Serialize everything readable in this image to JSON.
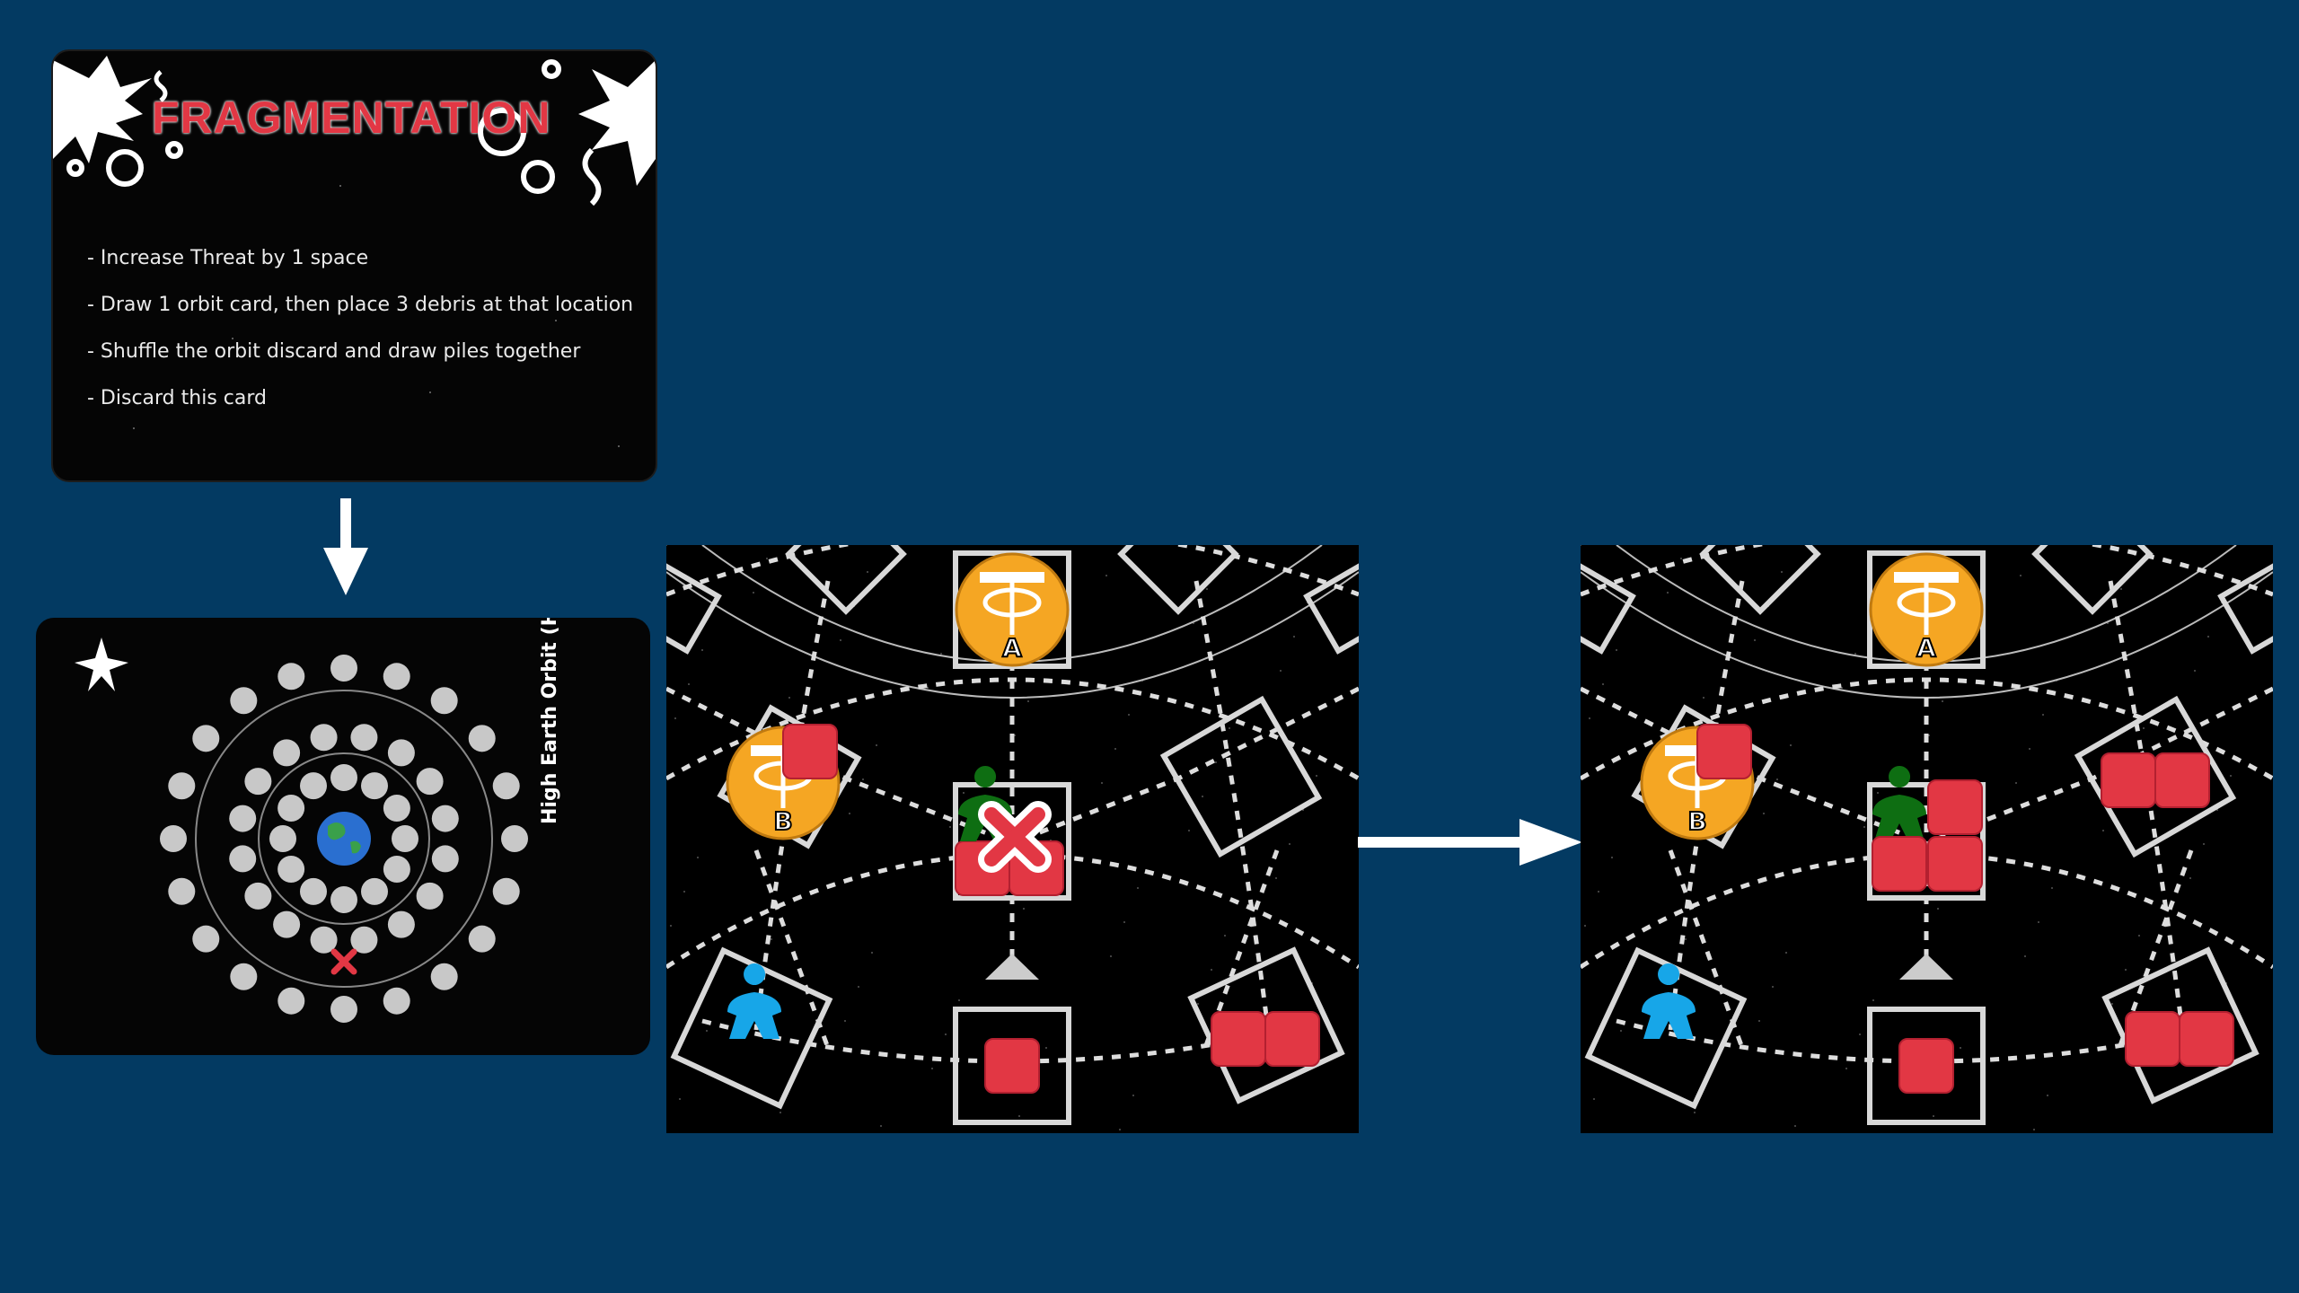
{
  "event_card": {
    "title": "FRAGMENTATION",
    "rules": [
      "- Increase Threat by 1 space",
      "- Draw 1 orbit card, then place 3 debris at that location",
      "- Shuffle the orbit discard and draw piles together",
      "- Discard this card"
    ]
  },
  "orbit_card": {
    "label": "High Earth Orbit (HEO)",
    "marker_icon": "x-mark-icon",
    "star_icon": "star-icon",
    "planet_icon": "earth-icon"
  },
  "boards": [
    {
      "name": "before",
      "satellites": [
        {
          "label": "A"
        },
        {
          "label": "B"
        }
      ],
      "removed_marker": "x-mark-icon"
    },
    {
      "name": "after",
      "satellites": [
        {
          "label": "A"
        },
        {
          "label": "B"
        }
      ]
    }
  ],
  "colors": {
    "background": "#033a62",
    "debris": "#e23744",
    "satellite": "#f5a623",
    "meeple_green": "#0e6e12",
    "meeple_blue": "#17a6e8",
    "title_red": "#e23744"
  }
}
